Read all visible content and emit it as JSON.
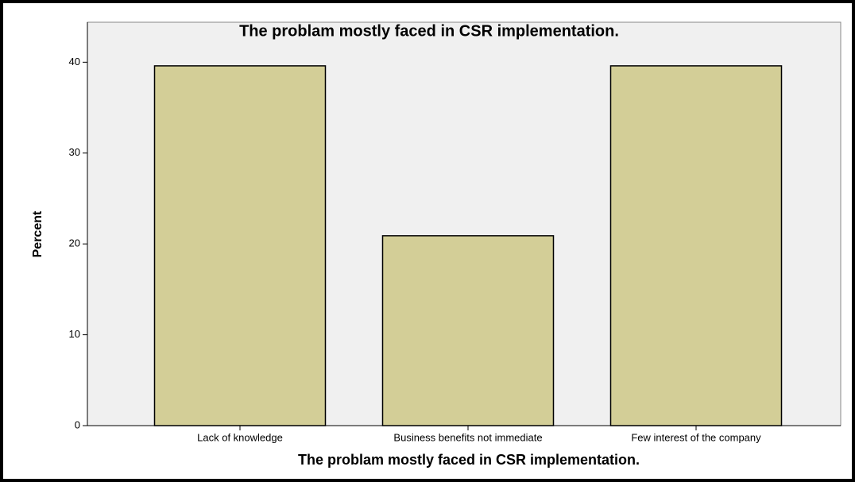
{
  "chart_data": {
    "type": "bar",
    "title": "The problam mostly faced in CSR implementation.",
    "x_label": "The problam mostly faced in CSR implementation.",
    "y_label": "Percent",
    "categories": [
      "Lack of knowledge",
      "Business benefits not immediate",
      "Few interest of the company"
    ],
    "values": [
      39.6,
      20.9,
      39.6
    ],
    "color": "#d3ce97",
    "ylim": [
      0,
      44.4
    ],
    "yticks": [
      0,
      10,
      20,
      30,
      40
    ],
    "grid": false
  }
}
